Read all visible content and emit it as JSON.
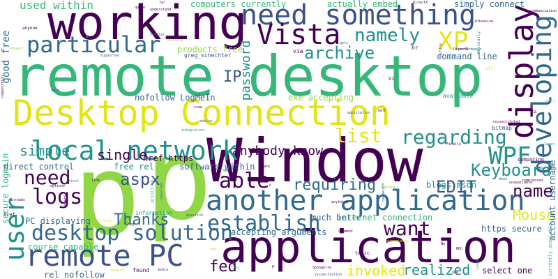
{
  "palette": {
    "purple": "#440154",
    "indigo": "#3b528b",
    "blue": "#31688e",
    "teal": "#21918c",
    "green": "#35b779",
    "lime": "#8fd744",
    "yellow": "#e3e418"
  },
  "words": [
    {
      "text": "remote desktop",
      "color": "#35b779"
    },
    {
      "text": "Desktop Connection",
      "color": "#e3e418"
    },
    {
      "text": "Window",
      "color": "#440154"
    },
    {
      "text": "application",
      "color": "#440154"
    },
    {
      "text": "p",
      "color": "#8fd744"
    },
    {
      "text": "p",
      "color": "#8fd744"
    },
    {
      "text": "working",
      "color": "#440154"
    },
    {
      "text": "need something",
      "color": "#3b528b"
    },
    {
      "text": "local network",
      "color": "#21918c"
    },
    {
      "text": "another application",
      "color": "#31688e"
    },
    {
      "text": "remote PC",
      "color": "#3b528b"
    },
    {
      "text": "user",
      "color": "#21918c"
    },
    {
      "text": "display",
      "color": "#440154"
    },
    {
      "text": "developing",
      "color": "#31688e"
    },
    {
      "text": "Vista",
      "color": "#440154"
    },
    {
      "text": "particular",
      "color": "#31688e"
    },
    {
      "text": "XP",
      "color": "#e3e418"
    },
    {
      "text": "WPF",
      "color": "#21918c"
    },
    {
      "text": "desktop solution",
      "color": "#31688e"
    },
    {
      "text": "establish",
      "color": "#31688e"
    },
    {
      "text": "requiring",
      "color": "#31688e"
    },
    {
      "text": "Keyboard",
      "color": "#21918c"
    },
    {
      "text": "Mouse",
      "color": "#e3e418"
    },
    {
      "text": "logs",
      "color": "#440154"
    },
    {
      "text": "need",
      "color": "#440154"
    },
    {
      "text": "able",
      "color": "#440154"
    },
    {
      "text": "want",
      "color": "#440154"
    },
    {
      "text": "regarding",
      "color": "#21918c"
    },
    {
      "text": "list",
      "color": "#e3e418"
    },
    {
      "text": "namely",
      "color": "#21918c"
    },
    {
      "text": "archive",
      "color": "#21918c"
    },
    {
      "text": "simple",
      "color": "#21918c"
    },
    {
      "text": "single",
      "color": "#440154"
    },
    {
      "text": "Thanks",
      "color": "#31688e"
    },
    {
      "text": "aspx",
      "color": "#3b528b"
    },
    {
      "text": "EDIT",
      "color": "#3b528b"
    },
    {
      "text": "name",
      "color": "#440154"
    },
    {
      "text": "realized",
      "color": "#21918c"
    },
    {
      "text": "invoked",
      "color": "#e3e418"
    },
    {
      "text": "fed",
      "color": "#440154"
    },
    {
      "text": "IP",
      "color": "#3b528b"
    },
    {
      "text": "password",
      "color": "#21918c"
    },
    {
      "text": "anybody know",
      "color": "#440154"
    },
    {
      "text": "used within",
      "color": "#35b779"
    },
    {
      "text": "good free",
      "color": "#31688e"
    },
    {
      "text": "computers currently",
      "color": "#35b779"
    },
    {
      "text": "actually embed",
      "color": "#35b779"
    },
    {
      "text": "simply connect",
      "color": "#31688e"
    },
    {
      "text": "command line",
      "color": "#31688e"
    },
    {
      "text": "products free",
      "color": "#8fd744"
    },
    {
      "text": "nofollow LogMeIn",
      "color": "#31688e"
    },
    {
      "text": "exe accepting",
      "color": "#8fd744"
    },
    {
      "text": "href https",
      "color": "#440154"
    },
    {
      "text": "free rel",
      "color": "#21918c"
    },
    {
      "text": "software within",
      "color": "#31688e"
    },
    {
      "text": "direct control",
      "color": "#31688e"
    },
    {
      "text": "secure logmein",
      "color": "#35b779"
    },
    {
      "text": "course capable",
      "color": "#35b779"
    },
    {
      "text": "rel nofollow",
      "color": "#31688e"
    },
    {
      "text": "PC displaying",
      "color": "#31688e"
    },
    {
      "text": "much better",
      "color": "#31688e"
    },
    {
      "text": "internet connection",
      "color": "#35b779"
    },
    {
      "text": "accepting arguments",
      "color": "#31688e"
    },
    {
      "text": "https secure",
      "color": "#31688e"
    },
    {
      "text": "blogs msdn",
      "color": "#21918c"
    },
    {
      "text": "select one",
      "color": "#440154"
    },
    {
      "text": "currently available",
      "color": "#35b779"
    },
    {
      "text": "account username",
      "color": "#31688e"
    },
    {
      "text": "greg_schechter",
      "color": "#3b528b"
    },
    {
      "text": "information",
      "color": "#21918c"
    },
    {
      "text": "bitmap",
      "color": "#3b528b"
    },
    {
      "text": "available",
      "color": "#21918c"
    },
    {
      "text": "found",
      "color": "#440154"
    },
    {
      "text": "via",
      "color": "#440154"
    },
    {
      "text": "hr",
      "color": "#440154"
    },
    {
      "text": "DirectX",
      "color": "#440154"
    },
    {
      "text": "DirectB",
      "color": "#440154"
    },
    {
      "text": "comparing",
      "color": "#440154"
    },
    {
      "text": "topic",
      "color": "#440154"
    },
    {
      "text": "anyone",
      "color": "#440154"
    },
    {
      "text": "quote",
      "color": "#440154"
    },
    {
      "text": "request",
      "color": "#8fd744"
    },
    {
      "text": "supported",
      "color": "#3b528b"
    },
    {
      "text": "similar",
      "color": "#3b528b"
    },
    {
      "text": "thinking",
      "color": "#8fd744"
    },
    {
      "text": "gets",
      "color": "#31688e"
    },
    {
      "text": "intensive",
      "color": "#440154"
    },
    {
      "text": "obviously",
      "color": "#21918c"
    },
    {
      "text": "performance",
      "color": "#31688e"
    },
    {
      "text": "machine",
      "color": "#3b528b"
    },
    {
      "text": "unavailable",
      "color": "#440154"
    },
    {
      "text": "Greg",
      "color": "#440154"
    },
    {
      "text": "media",
      "color": "#3b528b"
    },
    {
      "text": "Spongelle",
      "color": "#440154"
    },
    {
      "text": "visualisation",
      "color": "#3b528b"
    },
    {
      "text": "question",
      "color": "#3b528b"
    },
    {
      "text": "anything",
      "color": "#440154"
    },
    {
      "text": "bandwidth",
      "color": "#31688e"
    },
    {
      "text": "reconstituted",
      "color": "#440154"
    },
    {
      "text": "compressed",
      "color": "#440154"
    },
    {
      "text": "underlying",
      "color": "#31688e"
    },
    {
      "text": "done",
      "color": "#31688e"
    },
    {
      "text": "entry",
      "color": "#8fd744"
    },
    {
      "text": "view",
      "color": "#440154"
    },
    {
      "text": "advice",
      "color": "#3b528b"
    },
    {
      "text": "integration",
      "color": "#21918c"
    },
    {
      "text": "Duility",
      "color": "#8fd744"
    },
    {
      "text": "client",
      "color": "#21918c"
    },
    {
      "text": "options",
      "color": "#440154"
    },
    {
      "text": "link",
      "color": "#440154"
    },
    {
      "text": "inroads",
      "color": "#440154"
    },
    {
      "text": "board",
      "color": "#440154"
    },
    {
      "text": "late",
      "color": "#440154"
    },
    {
      "text": "remoted",
      "color": "#8fd744"
    },
    {
      "text": "comment",
      "color": "#440154"
    },
    {
      "text": "application",
      "color": "#3b528b"
    },
    {
      "text": "sent",
      "color": "#440154"
    },
    {
      "text": "primitive",
      "color": "#35b779"
    },
    {
      "text": "resolved",
      "color": "#31688e"
    },
    {
      "text": "composition",
      "color": "#440154"
    },
    {
      "text": "date",
      "color": "#3b528b"
    },
    {
      "text": "href",
      "color": "#440154"
    },
    {
      "text": "tims",
      "color": "#35b779"
    },
    {
      "text": "run",
      "color": "#8fd744"
    },
    {
      "text": "handles",
      "color": "#e3e418"
    },
    {
      "text": "experience",
      "color": "#e3e418"
    },
    {
      "text": "issue",
      "color": "#21918c"
    },
    {
      "text": "layer",
      "color": "#21918c"
    },
    {
      "text": "far",
      "color": "#440154"
    },
    {
      "text": "understand",
      "color": "#440154"
    },
    {
      "text": "blog",
      "color": "#e3e418"
    },
    {
      "text": "VNC",
      "color": "#3b528b"
    },
    {
      "text": "RDC",
      "color": "#440154"
    },
    {
      "text": "Vi",
      "color": "#440154"
    },
    {
      "text": "No",
      "color": "#440154"
    },
    {
      "text": "P",
      "color": "#440154"
    },
    {
      "text": "v",
      "color": "#440154"
    },
    {
      "text": "will",
      "color": "#e3e418"
    },
    {
      "text": "one",
      "color": "#440154"
    },
    {
      "text": "communication",
      "color": "#440154"
    },
    {
      "text": "ta",
      "color": "#440154"
    },
    {
      "text": "Finally",
      "color": "#440154"
    }
  ]
}
